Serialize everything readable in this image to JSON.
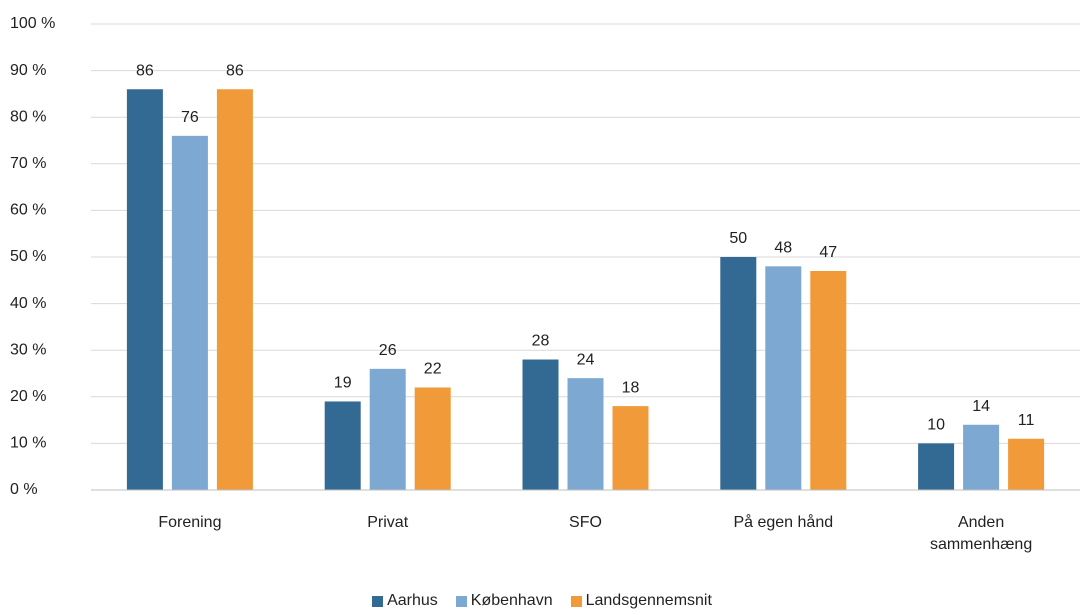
{
  "chart_data": {
    "type": "bar",
    "categories": [
      "Forening",
      "Privat",
      "SFO",
      "På egen hånd",
      "Anden sammenhæng"
    ],
    "series": [
      {
        "name": "Aarhus",
        "color": "#336a93",
        "values": [
          86,
          19,
          28,
          50,
          10
        ]
      },
      {
        "name": "København",
        "color": "#7ca8d1",
        "values": [
          76,
          26,
          24,
          48,
          14
        ]
      },
      {
        "name": "Landsgennemsnit",
        "color": "#f09a39",
        "values": [
          86,
          22,
          18,
          47,
          11
        ]
      }
    ],
    "ylim": [
      0,
      100
    ],
    "yticks": [
      {
        "value": 0,
        "label": "0 %"
      },
      {
        "value": 10,
        "label": "10 %"
      },
      {
        "value": 20,
        "label": "20 %"
      },
      {
        "value": 30,
        "label": "30 %"
      },
      {
        "value": 40,
        "label": "40 %"
      },
      {
        "value": 50,
        "label": "50 %"
      },
      {
        "value": 60,
        "label": "60 %"
      },
      {
        "value": 70,
        "label": "70 %"
      },
      {
        "value": 80,
        "label": "80 %"
      },
      {
        "value": 90,
        "label": "90 %"
      },
      {
        "value": 100,
        "label": "100 %"
      }
    ],
    "grid": true,
    "legend": "bottom"
  }
}
